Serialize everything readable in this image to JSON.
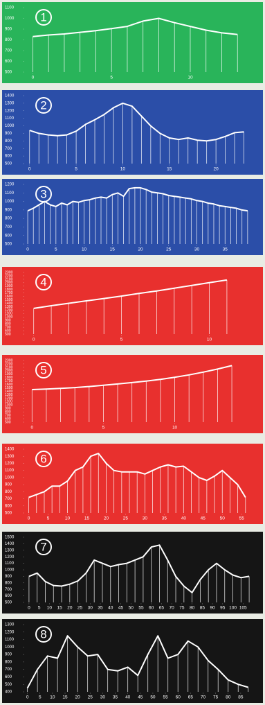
{
  "chart_data": [
    {
      "type": "line",
      "annotation": "1",
      "background": "#29b45a",
      "color": "#ffffff",
      "x": [
        0,
        1,
        2,
        3,
        4,
        5,
        6,
        7,
        8,
        9,
        10,
        11,
        12,
        13
      ],
      "values": [
        830,
        845,
        855,
        870,
        885,
        905,
        925,
        975,
        1000,
        960,
        925,
        890,
        865,
        850
      ],
      "xlim": [
        -0.5,
        14
      ],
      "ylim": [
        500,
        1100
      ],
      "xticks": [
        0,
        5,
        10
      ],
      "yticks": [
        500,
        600,
        700,
        800,
        900,
        1000,
        1100
      ]
    },
    {
      "type": "line",
      "annotation": "2",
      "background": "#2b4ea8",
      "color": "#ffffff",
      "x": [
        0,
        1,
        2,
        3,
        4,
        5,
        6,
        7,
        8,
        9,
        10,
        11,
        12,
        13,
        14,
        15,
        16,
        17,
        18,
        19,
        20,
        21,
        22,
        23
      ],
      "values": [
        940,
        900,
        880,
        870,
        880,
        930,
        1020,
        1080,
        1150,
        1240,
        1300,
        1260,
        1130,
        1000,
        900,
        840,
        820,
        840,
        810,
        800,
        820,
        860,
        910,
        920
      ],
      "xlim": [
        -0.5,
        24
      ],
      "ylim": [
        500,
        1400
      ],
      "xticks": [
        0,
        5,
        10,
        15,
        20
      ],
      "yticks": [
        500,
        600,
        700,
        800,
        900,
        1000,
        1100,
        1200,
        1300,
        1400
      ]
    },
    {
      "type": "line",
      "annotation": "3",
      "background": "#2b4ea8",
      "color": "#ffffff",
      "x": [
        0,
        1,
        2,
        3,
        4,
        5,
        6,
        7,
        8,
        9,
        10,
        11,
        12,
        13,
        14,
        15,
        16,
        17,
        18,
        19,
        20,
        21,
        22,
        23,
        24,
        25,
        26,
        27,
        28,
        29,
        30,
        31,
        32,
        33,
        34,
        35,
        36,
        37,
        38,
        39
      ],
      "values": [
        890,
        920,
        960,
        1000,
        960,
        940,
        980,
        960,
        1000,
        990,
        1010,
        1020,
        1040,
        1050,
        1040,
        1080,
        1100,
        1060,
        1150,
        1160,
        1160,
        1140,
        1110,
        1100,
        1090,
        1070,
        1060,
        1050,
        1040,
        1030,
        1010,
        1000,
        980,
        970,
        950,
        940,
        930,
        920,
        900,
        890
      ],
      "xlim": [
        -0.5,
        40
      ],
      "ylim": [
        500,
        1200
      ],
      "xticks": [
        0,
        5,
        10,
        15,
        20,
        25,
        30,
        35
      ],
      "yticks": [
        500,
        600,
        700,
        800,
        900,
        1000,
        1100,
        1200
      ]
    },
    {
      "type": "line",
      "annotation": "4",
      "background": "#e8302e",
      "color": "#ffffff",
      "x": [
        0,
        1,
        2,
        3,
        4,
        5,
        6,
        7,
        8,
        9,
        10,
        11
      ],
      "values": [
        1250,
        1330,
        1400,
        1470,
        1540,
        1610,
        1690,
        1760,
        1840,
        1920,
        2000,
        2080
      ],
      "xlim": [
        -0.5,
        12.5
      ],
      "ylim": [
        500,
        2300
      ],
      "xticks": [
        0,
        5,
        10
      ],
      "yticks": [
        500,
        600,
        700,
        800,
        900,
        1000,
        1100,
        1200,
        1300,
        1400,
        1500,
        1600,
        1700,
        1800,
        1900,
        2000,
        2100,
        2200,
        2300
      ]
    },
    {
      "type": "line",
      "annotation": "5",
      "background": "#e8302e",
      "color": "#ffffff",
      "x": [
        0,
        1,
        2,
        3,
        4,
        5,
        6,
        7,
        8,
        9,
        10,
        11,
        12,
        13,
        14
      ],
      "values": [
        1450,
        1465,
        1485,
        1510,
        1540,
        1575,
        1615,
        1655,
        1700,
        1750,
        1810,
        1880,
        1960,
        2050,
        2150
      ],
      "xlim": [
        -0.5,
        15.5
      ],
      "ylim": [
        500,
        2300
      ],
      "xticks": [
        0,
        5,
        10
      ],
      "yticks": [
        500,
        600,
        700,
        800,
        900,
        1000,
        1100,
        1200,
        1300,
        1400,
        1500,
        1600,
        1700,
        1800,
        1900,
        2000,
        2100,
        2200,
        2300
      ]
    },
    {
      "type": "line",
      "annotation": "6",
      "background": "#e8302e",
      "color": "#ffffff",
      "x": [
        0,
        2,
        4,
        6,
        8,
        10,
        12,
        14,
        16,
        18,
        20,
        22,
        24,
        26,
        28,
        30,
        32,
        34,
        36,
        38,
        40,
        42,
        44,
        46,
        48,
        50,
        52,
        54,
        56
      ],
      "values": [
        720,
        760,
        800,
        880,
        880,
        950,
        1100,
        1150,
        1300,
        1340,
        1200,
        1100,
        1080,
        1080,
        1080,
        1050,
        1100,
        1150,
        1180,
        1150,
        1160,
        1080,
        1000,
        960,
        1020,
        1100,
        1000,
        900,
        720
      ],
      "xlim": [
        -1,
        58
      ],
      "ylim": [
        500,
        1400
      ],
      "xticks": [
        0,
        5,
        10,
        15,
        20,
        25,
        30,
        35,
        40,
        45,
        50,
        55
      ],
      "yticks": [
        500,
        600,
        700,
        800,
        900,
        1000,
        1100,
        1200,
        1300,
        1400
      ]
    },
    {
      "type": "line",
      "annotation": "7",
      "background": "#151515",
      "color": "#ffffff",
      "x": [
        0,
        4,
        8,
        12,
        16,
        20,
        24,
        28,
        32,
        36,
        40,
        44,
        48,
        52,
        56,
        60,
        64,
        68,
        72,
        76,
        80,
        84,
        88,
        92,
        96,
        100,
        104,
        108
      ],
      "values": [
        900,
        950,
        820,
        760,
        750,
        780,
        830,
        950,
        1150,
        1100,
        1050,
        1080,
        1100,
        1150,
        1200,
        1350,
        1380,
        1150,
        900,
        750,
        650,
        850,
        1000,
        1100,
        1000,
        920,
        880,
        900
      ],
      "xlim": [
        -2,
        110
      ],
      "ylim": [
        500,
        1500
      ],
      "xticks": [
        0,
        5,
        10,
        15,
        20,
        25,
        30,
        35,
        40,
        45,
        50,
        55,
        60,
        65,
        70,
        75,
        80,
        85,
        90,
        95,
        100,
        105
      ],
      "yticks": [
        500,
        600,
        700,
        800,
        900,
        1000,
        1100,
        1200,
        1300,
        1400,
        1500
      ]
    },
    {
      "type": "line",
      "annotation": "8",
      "background": "#151515",
      "color": "#ffffff",
      "x": [
        0,
        4,
        8,
        12,
        16,
        20,
        24,
        28,
        32,
        36,
        40,
        44,
        48,
        52,
        56,
        60,
        64,
        68,
        72,
        76,
        80,
        84,
        88
      ],
      "values": [
        450,
        700,
        880,
        850,
        1150,
        1000,
        880,
        900,
        700,
        680,
        730,
        620,
        900,
        1150,
        850,
        900,
        1080,
        1000,
        820,
        700,
        560,
        500,
        460
      ],
      "xlim": [
        -1,
        90
      ],
      "ylim": [
        400,
        1300
      ],
      "xticks": [
        0,
        5,
        10,
        15,
        20,
        25,
        30,
        35,
        40,
        45,
        50,
        55,
        60,
        65,
        70,
        75,
        80,
        85
      ],
      "yticks": [
        400,
        500,
        600,
        700,
        800,
        900,
        1000,
        1100,
        1200,
        1300
      ]
    }
  ]
}
